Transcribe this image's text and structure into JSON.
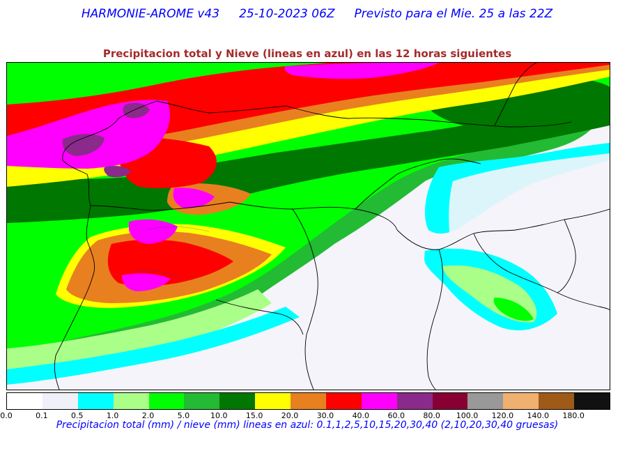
{
  "header": {
    "model": "HARMONIE-AROME v43",
    "run": "25-10-2023 06Z",
    "forecast": "Previsto para el Mie. 25 a las 22Z"
  },
  "subtitle": "Precipitacion total y Nieve (lineas en azul) en las 12 horas siguientes",
  "colorbar": {
    "ticks": [
      "0.0",
      "0.1",
      "0.5",
      "1.0",
      "2.0",
      "5.0",
      "10.0",
      "15.0",
      "20.0",
      "30.0",
      "40.0",
      "60.0",
      "80.0",
      "100.0",
      "120.0",
      "140.0",
      "180.0"
    ],
    "colors": [
      "#ffffff",
      "#f0f0f8",
      "#00ffff",
      "#aaff88",
      "#00ff00",
      "#22bb33",
      "#007700",
      "#ffff00",
      "#e88020",
      "#ff0000",
      "#ff00ff",
      "#8a2a8a",
      "#880033",
      "#999999",
      "#f0b070",
      "#a05a18",
      "#111111"
    ]
  },
  "caption": "Precipitacion total (mm) / nieve (mm) lineas en azul: 0.1,1,2,5,10,15,20,30,40  (2,10,20,30,40 gruesas)"
}
